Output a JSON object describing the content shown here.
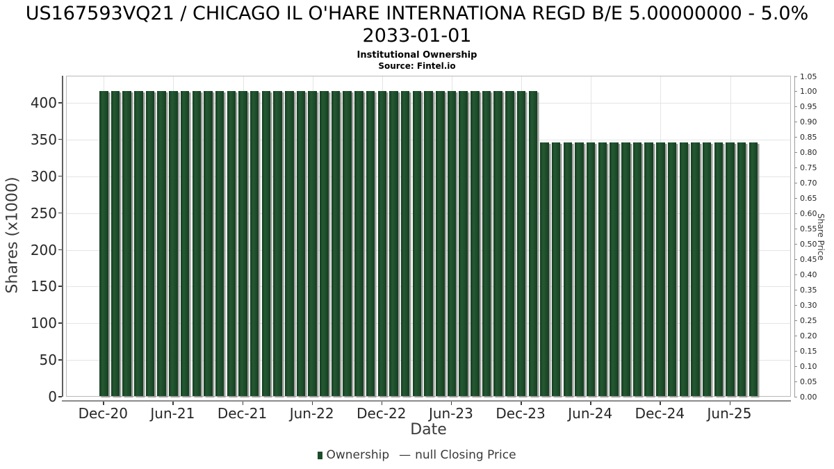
{
  "chart_data": {
    "type": "bar",
    "title_line1": "US167593VQ21 / CHICAGO IL O'HARE INTERNATIONA REGD B/E 5.00000000 - 5.0%",
    "title_line2": "2033-01-01",
    "subtitle": "Institutional Ownership",
    "source": "Source: Fintel.io",
    "xlabel": "Date",
    "ylabel_left": "Shares (x1000)",
    "ylabel_right": "Share Price",
    "legend": [
      {
        "label": "Ownership",
        "marker": "square",
        "color": "#1d4c2a"
      },
      {
        "label": "null Closing Price",
        "marker": "—",
        "color": "#3a3a3a"
      }
    ],
    "colors": {
      "bar": "#1d4c2a",
      "bar_shadow": "#9e9e9e",
      "grid": "#e4e4e4"
    },
    "categories": [
      "Dec-20",
      "Jan-21",
      "Feb-21",
      "Mar-21",
      "Apr-21",
      "May-21",
      "Jun-21",
      "Jul-21",
      "Aug-21",
      "Sep-21",
      "Oct-21",
      "Nov-21",
      "Dec-21",
      "Jan-22",
      "Feb-22",
      "Mar-22",
      "Apr-22",
      "May-22",
      "Jun-22",
      "Jul-22",
      "Aug-22",
      "Sep-22",
      "Oct-22",
      "Nov-22",
      "Dec-22",
      "Jan-23",
      "Feb-23",
      "Mar-23",
      "Apr-23",
      "May-23",
      "Jun-23",
      "Jul-23",
      "Aug-23",
      "Sep-23",
      "Oct-23",
      "Nov-23",
      "Dec-23",
      "Jan-24",
      "Feb-24",
      "Mar-24",
      "Apr-24",
      "May-24",
      "Jun-24",
      "Jul-24",
      "Aug-24",
      "Sep-24",
      "Oct-24",
      "Nov-24",
      "Dec-24",
      "Jan-25",
      "Feb-25",
      "Mar-25",
      "Apr-25",
      "May-25",
      "Jun-25",
      "Jul-25",
      "Aug-25"
    ],
    "series": [
      {
        "name": "Ownership",
        "axis": "left",
        "values": [
          415,
          415,
          415,
          415,
          415,
          415,
          415,
          415,
          415,
          415,
          415,
          415,
          415,
          415,
          415,
          415,
          415,
          415,
          415,
          415,
          415,
          415,
          415,
          415,
          415,
          415,
          415,
          415,
          415,
          415,
          415,
          415,
          415,
          415,
          415,
          415,
          415,
          415,
          345,
          345,
          345,
          345,
          345,
          345,
          345,
          345,
          345,
          345,
          345,
          345,
          345,
          345,
          345,
          345,
          345,
          345,
          345
        ]
      },
      {
        "name": "null Closing Price",
        "axis": "right",
        "values": []
      }
    ],
    "left_axis": {
      "ticks": [
        0,
        50,
        100,
        150,
        200,
        250,
        300,
        350,
        400
      ],
      "range": [
        0,
        437
      ]
    },
    "right_axis": {
      "ticks": [
        "0.00",
        "0.05",
        "0.10",
        "0.15",
        "0.20",
        "0.25",
        "0.30",
        "0.35",
        "0.40",
        "0.45",
        "0.50",
        "0.55",
        "0.60",
        "0.65",
        "0.70",
        "0.75",
        "0.80",
        "0.85",
        "0.90",
        "0.95",
        "1.00",
        "1.05"
      ],
      "range": [
        0,
        1.05
      ]
    },
    "x_ticks": [
      {
        "label": "Dec-20",
        "index": 0
      },
      {
        "label": "Jun-21",
        "index": 6
      },
      {
        "label": "Dec-21",
        "index": 12
      },
      {
        "label": "Jun-22",
        "index": 18
      },
      {
        "label": "Dec-22",
        "index": 24
      },
      {
        "label": "Jun-23",
        "index": 30
      },
      {
        "label": "Dec-23",
        "index": 36
      },
      {
        "label": "Jun-24",
        "index": 42
      },
      {
        "label": "Dec-24",
        "index": 48
      },
      {
        "label": "Jun-25",
        "index": 54
      }
    ],
    "grid": "on",
    "legend_position": "bottom-center"
  }
}
